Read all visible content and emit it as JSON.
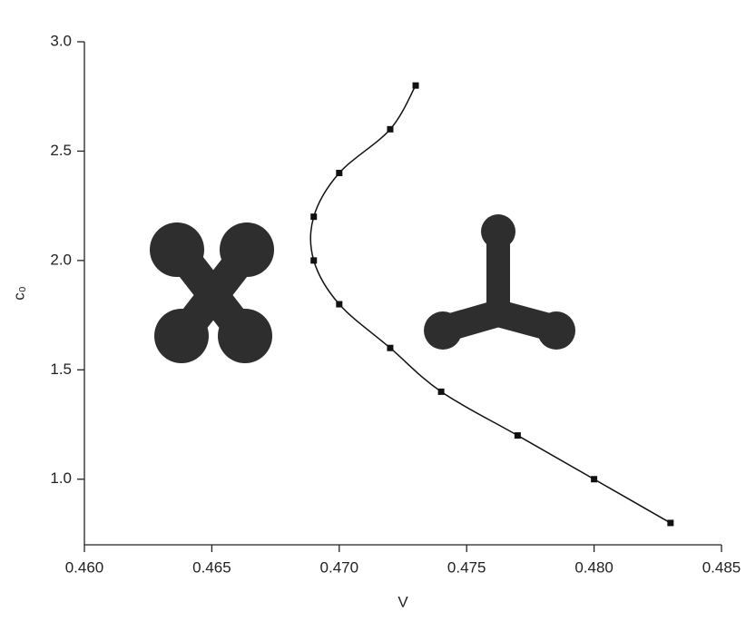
{
  "chart_data": {
    "type": "line",
    "x_label": "V",
    "y_label": "c₀",
    "x": [
      0.473,
      0.472,
      0.47,
      0.469,
      0.469,
      0.47,
      0.472,
      0.474,
      0.477,
      0.48,
      0.483
    ],
    "series": [
      {
        "color": "#111111",
        "values": [
          2.8,
          2.6,
          2.4,
          2.2,
          2.0,
          1.8,
          1.6,
          1.4,
          1.2,
          1.0,
          0.8
        ]
      }
    ],
    "xlim": [
      0.46,
      0.485
    ],
    "xticks": [
      {
        "value": 0.46,
        "label": "0.460"
      },
      0.465,
      {
        "value": 0.47,
        "label": "0.470"
      },
      0.475,
      {
        "value": 0.48,
        "label": "0.480"
      },
      0.485
    ],
    "ylim": [
      0.7,
      3.0
    ],
    "yticks": [
      {
        "value": 1,
        "label": "1.0"
      },
      1.5,
      {
        "value": 2,
        "label": "2.0"
      },
      2.5,
      {
        "value": 3,
        "label": "3.0"
      }
    ],
    "grid": false
  }
}
